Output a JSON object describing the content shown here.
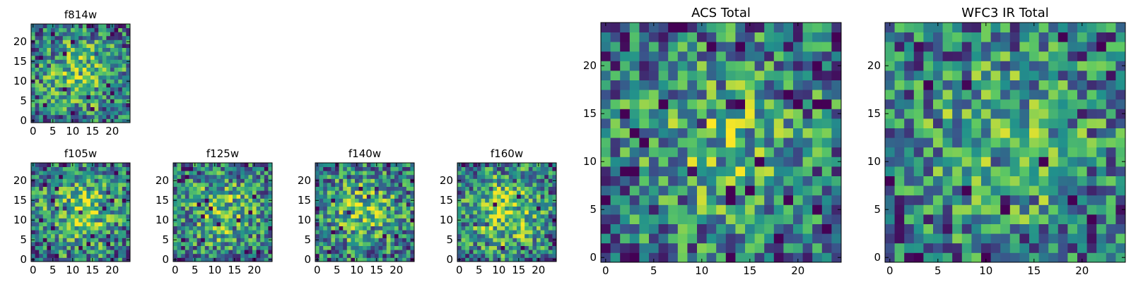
{
  "figure": "multi-panel image grid (viridis colormap)",
  "chart_data": [
    {
      "type": "heatmap",
      "title": "f814w",
      "xticks": [
        "0",
        "5",
        "10",
        "15",
        "20"
      ],
      "yticks": [
        "0",
        "5",
        "10",
        "15",
        "20"
      ],
      "xlim": [
        0,
        25
      ],
      "ylim": [
        0,
        25
      ],
      "grid_size": 25,
      "pixel_scale": "1px/pixel",
      "seed": 11,
      "center_bias": 0.35
    },
    {
      "type": "heatmap",
      "title": "f105w",
      "xticks": [
        "0",
        "5",
        "10",
        "15",
        "20"
      ],
      "yticks": [
        "0",
        "5",
        "10",
        "15",
        "20"
      ],
      "xlim": [
        0,
        25
      ],
      "ylim": [
        0,
        25
      ],
      "grid_size": 25,
      "seed": 23,
      "center_bias": 0.4
    },
    {
      "type": "heatmap",
      "title": "f125w",
      "xticks": [
        "0",
        "5",
        "10",
        "15",
        "20"
      ],
      "yticks": [
        "0",
        "5",
        "10",
        "15",
        "20"
      ],
      "xlim": [
        0,
        25
      ],
      "ylim": [
        0,
        25
      ],
      "grid_size": 25,
      "seed": 37,
      "center_bias": 0.35
    },
    {
      "type": "heatmap",
      "title": "f140w",
      "xticks": [
        "0",
        "5",
        "10",
        "15",
        "20"
      ],
      "yticks": [
        "0",
        "5",
        "10",
        "15",
        "20"
      ],
      "xlim": [
        0,
        25
      ],
      "ylim": [
        0,
        25
      ],
      "grid_size": 25,
      "seed": 41,
      "center_bias": 0.35
    },
    {
      "type": "heatmap",
      "title": "f160w",
      "xticks": [
        "0",
        "5",
        "10",
        "15",
        "20"
      ],
      "yticks": [
        "0",
        "5",
        "10",
        "15",
        "20"
      ],
      "xlim": [
        0,
        25
      ],
      "ylim": [
        0,
        25
      ],
      "grid_size": 25,
      "seed": 53,
      "center_bias": 0.45
    },
    {
      "type": "heatmap",
      "title": "ACS Total",
      "xticks": [
        "0",
        "5",
        "10",
        "15",
        "20"
      ],
      "yticks": [
        "0",
        "5",
        "10",
        "15",
        "20"
      ],
      "xlim": [
        0,
        25
      ],
      "ylim": [
        0,
        25
      ],
      "grid_size": 25,
      "seed": 67,
      "center_bias": 0.3
    },
    {
      "type": "heatmap",
      "title": "WFC3 IR Total",
      "xticks": [
        "0",
        "5",
        "10",
        "15",
        "20"
      ],
      "yticks": [
        "0",
        "5",
        "10",
        "15",
        "20"
      ],
      "xlim": [
        0,
        25
      ],
      "ylim": [
        0,
        25
      ],
      "grid_size": 25,
      "seed": 79,
      "center_bias": 0.3
    }
  ],
  "colors": {
    "colormap": "viridis",
    "c0": "#440154",
    "c1": "#3b528b",
    "c2": "#21918c",
    "c3": "#5ec962",
    "c4": "#fde725",
    "axis": "#000000",
    "background": "#ffffff"
  }
}
